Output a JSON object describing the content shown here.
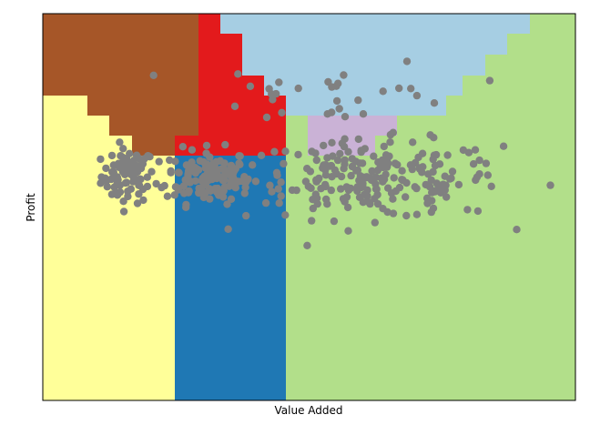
{
  "chart_data": {
    "type": "scatter",
    "title": "",
    "xlabel": "Value Added",
    "ylabel": "Profit",
    "x_ticks": "none",
    "y_ticks": "none",
    "grid": false,
    "legend": "none",
    "description_of_background": "decision-region map: stepped colored regions partition the plane",
    "region_colors": {
      "brown": "#a65628",
      "red": "#e31a1c",
      "light_blue": "#a6cee3",
      "yellow": "#ffff99",
      "blue": "#1f78b4",
      "lavender": "#cab2d6",
      "green": "#b2df8a"
    },
    "point_color": "#808080",
    "clusters": [
      {
        "center": [
          0.16,
          0.58
        ],
        "count": 80,
        "spread": [
          0.025,
          0.035
        ]
      },
      {
        "center": [
          0.31,
          0.58
        ],
        "count": 140,
        "spread": [
          0.04,
          0.035
        ]
      },
      {
        "center": [
          0.62,
          0.57
        ],
        "count": 230,
        "spread": [
          0.12,
          0.05
        ]
      },
      {
        "center": [
          0.55,
          0.8
        ],
        "count": 30,
        "spread": [
          0.12,
          0.04
        ]
      }
    ]
  }
}
